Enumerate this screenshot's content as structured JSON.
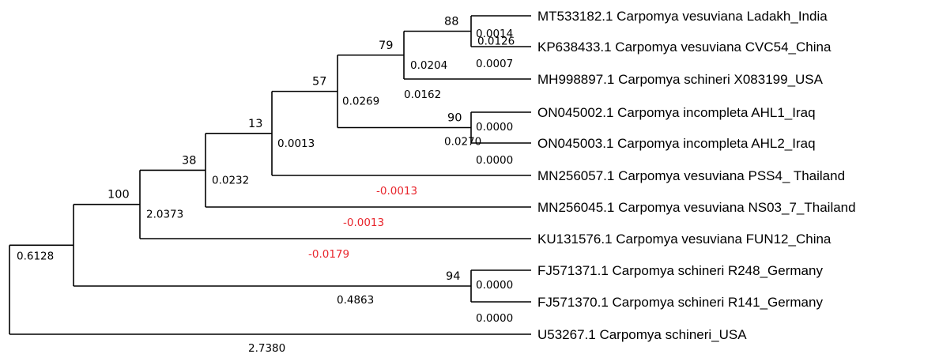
{
  "colors": {
    "line": "#000000",
    "text": "#000000",
    "negative": "#e8262d"
  },
  "tree": {
    "taxa": [
      {
        "id": "t1",
        "label": "MT533182.1 Carpomya vesuviana Ladakh_India"
      },
      {
        "id": "t2",
        "label": "KP638433.1 Carpomya vesuviana CVC54_China"
      },
      {
        "id": "t3",
        "label": "MH998897.1 Carpomya schineri X083199_USA"
      },
      {
        "id": "t4",
        "label": "ON045002.1 Carpomya incompleta AHL1_Iraq"
      },
      {
        "id": "t5",
        "label": "ON045003.1 Carpomya incompleta AHL2_Iraq"
      },
      {
        "id": "t6",
        "label": "MN256057.1 Carpomya vesuviana PSS4_ Thailand"
      },
      {
        "id": "t7",
        "label": "MN256045.1 Carpomya vesuviana NS03_7_Thailand"
      },
      {
        "id": "t8",
        "label": "KU131576.1 Carpomya vesuviana FUN12_China"
      },
      {
        "id": "t9",
        "label": "FJ571371.1 Carpomya schineri R248_Germany"
      },
      {
        "id": "t10",
        "label": "FJ571370.1 Carpomya schineri R141_Germany"
      },
      {
        "id": "t11",
        "label": "U53267.1 Carpomya schineri_USA"
      }
    ],
    "nodes": [
      {
        "id": "n1",
        "bootstrap": "88",
        "branch_length": "0.0126"
      },
      {
        "id": "n2",
        "bootstrap": "79",
        "branch_length": "0.0204"
      },
      {
        "id": "n3",
        "bootstrap": "90",
        "branch_length": "0.0270"
      },
      {
        "id": "n4",
        "bootstrap": "57",
        "branch_length": "0.0269"
      },
      {
        "id": "n5",
        "bootstrap": "13",
        "branch_length": "0.0013"
      },
      {
        "id": "n6",
        "bootstrap": "38",
        "branch_length": "0.0232"
      },
      {
        "id": "n7",
        "bootstrap": "100",
        "branch_length": "2.0373"
      },
      {
        "id": "n8",
        "bootstrap": "94",
        "branch_length": "0.4863"
      },
      {
        "id": "n9",
        "bootstrap": "",
        "branch_length": "0.6128"
      }
    ],
    "tip_branch_lengths": [
      {
        "taxon": "t1",
        "value": "0.0014",
        "negative": false
      },
      {
        "taxon": "t2",
        "value": "0.0007",
        "negative": false
      },
      {
        "taxon": "t3",
        "value": "0.0162",
        "negative": false
      },
      {
        "taxon": "t4",
        "value": "0.0000",
        "negative": false
      },
      {
        "taxon": "t5",
        "value": "0.0000",
        "negative": false
      },
      {
        "taxon": "t6",
        "value": "-0.0013",
        "negative": true
      },
      {
        "taxon": "t7",
        "value": "-0.0013",
        "negative": true
      },
      {
        "taxon": "t8",
        "value": "-0.0179",
        "negative": true
      },
      {
        "taxon": "t9",
        "value": "0.0000",
        "negative": false
      },
      {
        "taxon": "t10",
        "value": "0.0000",
        "negative": false
      },
      {
        "taxon": "t11",
        "value": "2.7380",
        "negative": false
      }
    ]
  }
}
